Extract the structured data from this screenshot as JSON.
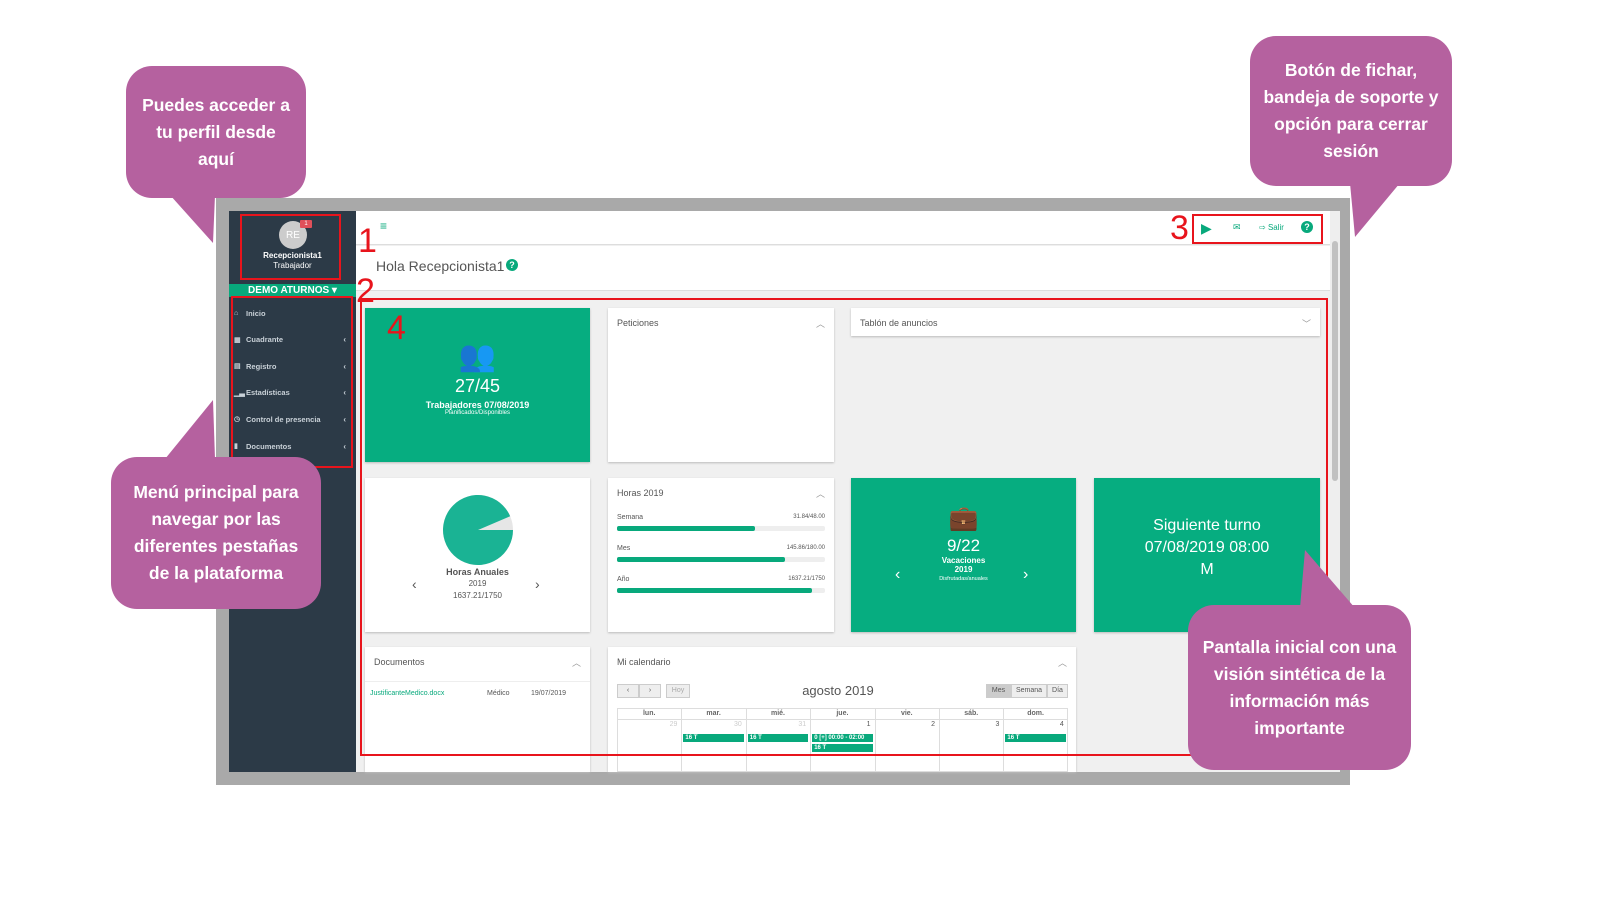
{
  "colors": {
    "accent": "#06ad80",
    "sidebar": "#2c3a47",
    "callout": "#b5619f",
    "annotation": "#e8141c"
  },
  "callouts": [
    {
      "text": "Puedes acceder a tu perfil desde aquí"
    },
    {
      "text": "Menú principal para navegar por las diferentes pestañas de la plataforma"
    },
    {
      "text": "Botón de fichar, bandeja de soporte y opción para cerrar sesión"
    },
    {
      "text": "Pantalla inicial con una visión sintética de la información más importante"
    }
  ],
  "annotations": [
    "1",
    "2",
    "3",
    "4"
  ],
  "profile": {
    "initials": "RE",
    "notifications": "1",
    "name": "Recepcionista1",
    "role": "Trabajador"
  },
  "company": "DEMO ATURNOS ▾",
  "menu": [
    {
      "label": "Inicio",
      "icon": "home-icon",
      "glyph": "⌂"
    },
    {
      "label": "Cuadrante",
      "icon": "calendar-icon",
      "glyph": "▦",
      "chevron": "‹"
    },
    {
      "label": "Registro",
      "icon": "file-icon",
      "glyph": "▤",
      "chevron": "‹"
    },
    {
      "label": "Estadísticas",
      "icon": "bar-chart-icon",
      "glyph": "▁▃",
      "chevron": "‹"
    },
    {
      "label": "Control de presencia",
      "icon": "clock-icon",
      "glyph": "◷",
      "chevron": "‹"
    },
    {
      "label": "Documentos",
      "icon": "document-icon",
      "glyph": "▮",
      "chevron": "‹"
    }
  ],
  "topbar": {
    "menu_glyph": "≡",
    "logout": "Salir"
  },
  "greeting": "Hola Recepcionista1",
  "workers": {
    "value": "27/45",
    "label": "Trabajadores 07/08/2019",
    "sub": "Planificados/Disponibles"
  },
  "requests": {
    "title": "Peticiones"
  },
  "board": {
    "title": "Tablón de anuncios"
  },
  "annual_hours": {
    "title": "Horas Anuales",
    "year": "2019",
    "value": "1637.21/1750",
    "fraction": 0.9355
  },
  "hours": {
    "title": "Horas 2019",
    "rows": [
      {
        "label": "Semana",
        "value": "31.84/48.00",
        "percent": 66.3
      },
      {
        "label": "Mes",
        "value": "145.86/180.00",
        "percent": 81.0
      },
      {
        "label": "Año",
        "value": "1637.21/1750",
        "percent": 93.6
      }
    ]
  },
  "vacations": {
    "value": "9/22",
    "label": "Vacaciones",
    "year": "2019",
    "sub": "Disfrutadas/anuales"
  },
  "next_shift": {
    "title": "Siguiente turno",
    "date": "07/08/2019 08:00",
    "code": "M"
  },
  "documents": {
    "title": "Documentos",
    "rows": [
      {
        "name": "JustificanteMedico.docx",
        "type": "Médico",
        "date": "19/07/2019"
      }
    ]
  },
  "calendar": {
    "title": "Mi calendario",
    "month": "agosto 2019",
    "today": "Hoy",
    "prev": "‹",
    "next": "›",
    "views": [
      "Mes",
      "Semana",
      "Día"
    ],
    "days": [
      "lun.",
      "mar.",
      "mié.",
      "jue.",
      "vie.",
      "sáb.",
      "dom."
    ],
    "dates": [
      "29",
      "30",
      "31",
      "1",
      "2",
      "3",
      "4"
    ],
    "events": [
      {
        "col": 1,
        "row": 0,
        "text": "16 T"
      },
      {
        "col": 2,
        "row": 0,
        "text": "16 T"
      },
      {
        "col": 3,
        "row": 0,
        "text": "0 [+] 00:00 - 02:00"
      },
      {
        "col": 3,
        "row": 1,
        "text": "16 T"
      },
      {
        "col": 6,
        "row": 0,
        "text": "16 T"
      }
    ]
  }
}
